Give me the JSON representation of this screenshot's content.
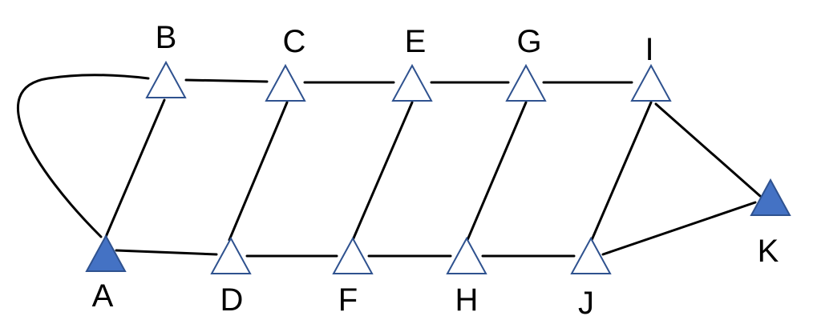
{
  "nodes": [
    {
      "id": "A",
      "label": "A",
      "filled": true
    },
    {
      "id": "B",
      "label": "B",
      "filled": false
    },
    {
      "id": "C",
      "label": "C",
      "filled": false
    },
    {
      "id": "D",
      "label": "D",
      "filled": false
    },
    {
      "id": "E",
      "label": "E",
      "filled": false
    },
    {
      "id": "F",
      "label": "F",
      "filled": false
    },
    {
      "id": "G",
      "label": "G",
      "filled": false
    },
    {
      "id": "H",
      "label": "H",
      "filled": false
    },
    {
      "id": "I",
      "label": "I",
      "filled": false
    },
    {
      "id": "J",
      "label": "J",
      "filled": false
    },
    {
      "id": "K",
      "label": "K",
      "filled": true
    }
  ],
  "edges": [
    [
      "A",
      "B"
    ],
    [
      "A",
      "D"
    ],
    [
      "B",
      "C"
    ],
    [
      "C",
      "D"
    ],
    [
      "C",
      "E"
    ],
    [
      "E",
      "F"
    ],
    [
      "D",
      "F"
    ],
    [
      "F",
      "H"
    ],
    [
      "E",
      "G"
    ],
    [
      "G",
      "H"
    ],
    [
      "G",
      "I"
    ],
    [
      "H",
      "J"
    ],
    [
      "I",
      "J"
    ],
    [
      "I",
      "K"
    ],
    [
      "J",
      "K"
    ]
  ],
  "curved_edges": [
    [
      "A",
      "B"
    ]
  ],
  "colors": {
    "stroke": "#000000",
    "filled_node": "#4472c4",
    "outline_node": "#2f528f",
    "hollow_fill": "#ffffff"
  }
}
